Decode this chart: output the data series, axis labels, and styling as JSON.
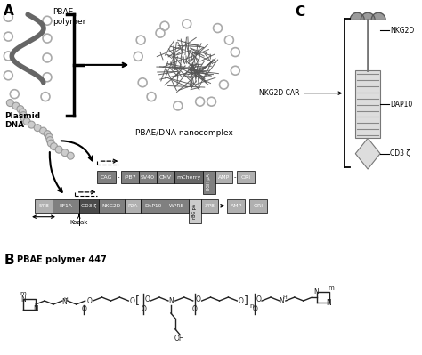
{
  "bg_color": "#ffffff",
  "panel_A_label": "A",
  "panel_B_label": "B",
  "panel_C_label": "C",
  "pbae_label": "PBAE\npolymer",
  "plasmid_label": "Plasmid\nDNA",
  "nanocomplex_label": "PBAE/DNA nanocomplex",
  "kozak_label": "Kozak",
  "panel_B_title": "PBAE polymer 447",
  "car_labels": [
    "NKG2D",
    "DAP10",
    "CD3 ζ"
  ],
  "car_main_label": "NKG2D CAR",
  "gray_dark": "#555555",
  "gray_med": "#888888",
  "gray_light": "#cccccc",
  "gray_box": "#808080",
  "gray_box2": "#b0b0b0",
  "gray_box3": "#666666",
  "black": "#000000",
  "white": "#ffffff"
}
